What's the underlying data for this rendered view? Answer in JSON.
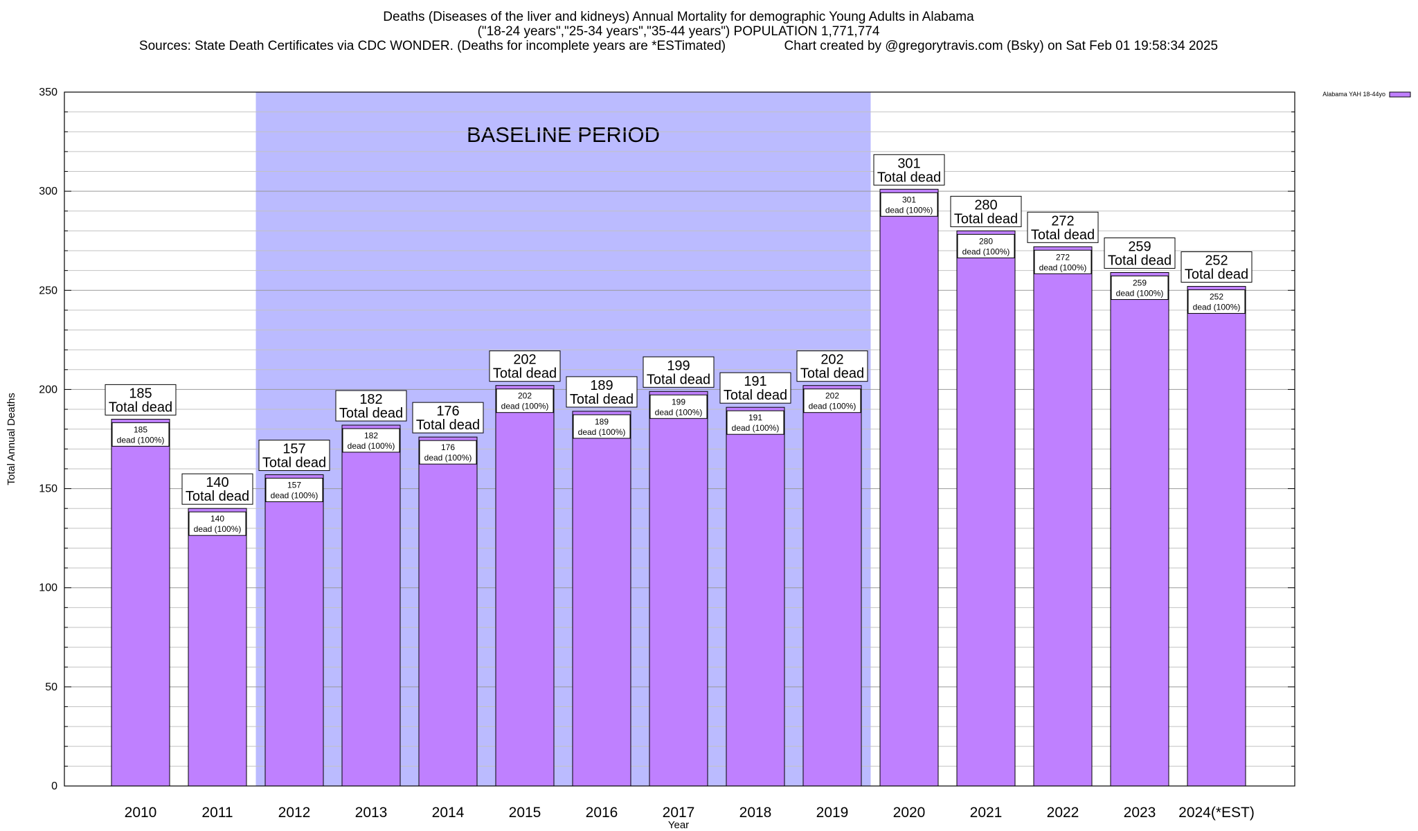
{
  "header": {
    "line1": "Deaths (Diseases of the liver and kidneys) Annual Mortality for demographic Young Adults in Alabama",
    "line2": "(\"18-24 years\",\"25-34 years\",\"35-44 years\") POPULATION 1,771,774",
    "line3": "Sources: State Death Certificates via CDC WONDER. (Deaths for incomplete years are *ESTimated)                Chart created by @gregorytravis.com (Bsky) on Sat Feb 01 19:58:34 2025"
  },
  "chart_data": {
    "type": "bar",
    "xlabel": "Year",
    "ylabel": "Total Annual Deaths",
    "ylim": [
      0,
      350
    ],
    "yticks": [
      "0",
      "50",
      "100",
      "150",
      "200",
      "250",
      "300",
      "350"
    ],
    "grid": true,
    "legend_placement": "top-right",
    "categories": [
      "2010",
      "2011",
      "2012",
      "2013",
      "2014",
      "2015",
      "2016",
      "2017",
      "2018",
      "2019",
      "2020",
      "2021",
      "2022",
      "2023",
      "2024(*EST)"
    ],
    "series": [
      {
        "name": "Alabama YAH 18-44yo",
        "color": "#bf80ff",
        "values": [
          185,
          140,
          157,
          182,
          176,
          202,
          189,
          199,
          191,
          202,
          301,
          280,
          272,
          259,
          252
        ]
      }
    ],
    "top_labels": [
      "185",
      "140",
      "157",
      "182",
      "176",
      "202",
      "189",
      "199",
      "191",
      "202",
      "301",
      "280",
      "272",
      "259",
      "252"
    ],
    "top_label_caption": "Total dead",
    "inner_labels": [
      "185",
      "140",
      "157",
      "182",
      "176",
      "202",
      "189",
      "199",
      "191",
      "202",
      "301",
      "280",
      "272",
      "259",
      "252"
    ],
    "inner_label_caption": "dead (100%)",
    "shaded_region": {
      "label": "BASELINE PERIOD",
      "from_category": "2012",
      "to_category": "2019",
      "color": "#bbbbff"
    }
  }
}
